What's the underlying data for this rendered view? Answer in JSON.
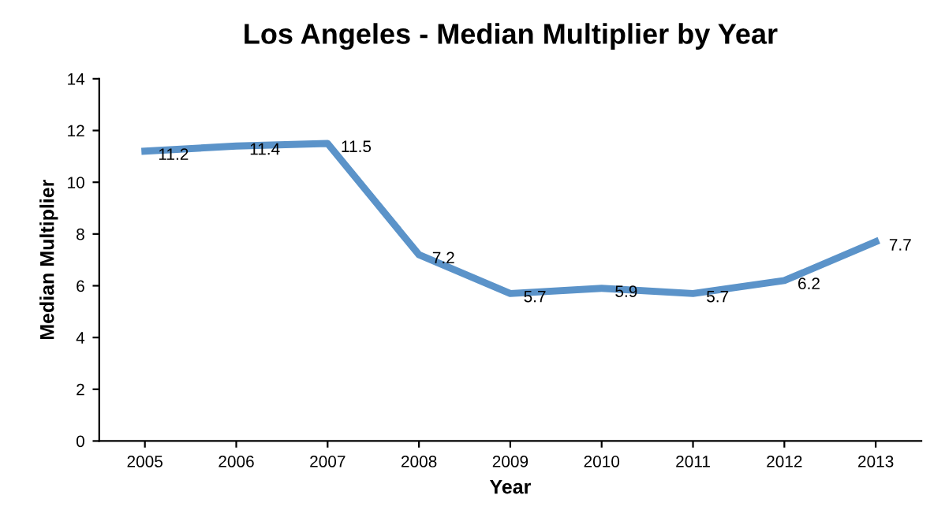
{
  "chart_data": {
    "type": "line",
    "title": "Los Angeles - Median Multiplier by Year",
    "xlabel": "Year",
    "ylabel": "Median Multiplier",
    "categories": [
      "2005",
      "2006",
      "2007",
      "2008",
      "2009",
      "2010",
      "2011",
      "2012",
      "2013"
    ],
    "series": [
      {
        "color": "#5b93c9",
        "values": [
          11.2,
          11.4,
          11.5,
          7.2,
          5.7,
          5.9,
          5.7,
          6.2,
          7.7
        ]
      }
    ],
    "ylim": [
      0,
      14
    ],
    "yticks": [
      0,
      2,
      4,
      6,
      8,
      10,
      12,
      14
    ],
    "grid": false,
    "legend": false,
    "marker": "none",
    "line_style": "solid",
    "data_labels": true
  }
}
